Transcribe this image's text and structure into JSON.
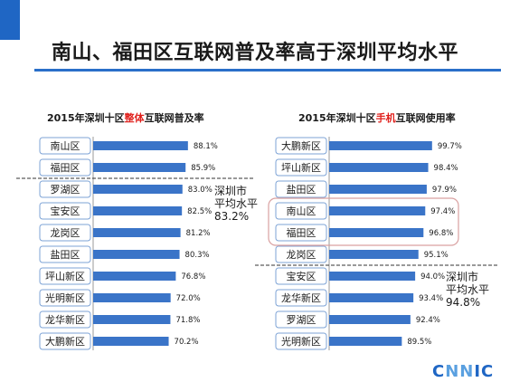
{
  "title": "南山、福田区互联网普及率高于深圳平均水平",
  "colors": {
    "bar": "#3a74c8",
    "accent": "#1f66c4",
    "highlight": "#e0201c",
    "label_box_border": "#7da3d6",
    "highlight_box_border": "#d9a0a0"
  },
  "logo": {
    "part1": "C",
    "part2": "NN",
    "part3": "IC"
  },
  "chart_data": [
    {
      "type": "bar",
      "orientation": "horizontal",
      "title_pre": "2015年深圳十区",
      "title_highlight": "整体",
      "title_post": "互联网普及率",
      "categories": [
        "南山区",
        "福田区",
        "罗湖区",
        "宝安区",
        "龙岗区",
        "盐田区",
        "坪山新区",
        "光明新区",
        "龙华新区",
        "大鹏新区"
      ],
      "values": [
        88.1,
        85.9,
        83.0,
        82.5,
        81.2,
        80.3,
        76.8,
        72.0,
        71.8,
        70.2
      ],
      "value_labels": [
        "88.1%",
        "85.9%",
        "83.0%",
        "82.5%",
        "81.2%",
        "80.3%",
        "76.8%",
        "72.0%",
        "71.8%",
        "70.2%"
      ],
      "average": {
        "line1": "深圳市",
        "line2": "平均水平",
        "value": "83.2%",
        "numeric": 83.2
      }
    },
    {
      "type": "bar",
      "orientation": "horizontal",
      "title_pre": "2015年深圳十区",
      "title_highlight": "手机",
      "title_post": "互联网使用率",
      "categories": [
        "大鹏新区",
        "坪山新区",
        "盐田区",
        "南山区",
        "福田区",
        "龙岗区",
        "宝安区",
        "龙华新区",
        "罗湖区",
        "光明新区"
      ],
      "values": [
        99.7,
        98.4,
        97.9,
        97.4,
        96.8,
        95.1,
        94.0,
        93.4,
        92.4,
        89.5
      ],
      "value_labels": [
        "99.7%",
        "98.4%",
        "97.9%",
        "97.4%",
        "96.8%",
        "95.1%",
        "94.0%",
        "93.4%",
        "92.4%",
        "89.5%"
      ],
      "highlighted": [
        "南山区",
        "福田区"
      ],
      "average": {
        "line1": "深圳市",
        "line2": "平均水平",
        "value": "94.8%",
        "numeric": 94.8
      }
    }
  ]
}
